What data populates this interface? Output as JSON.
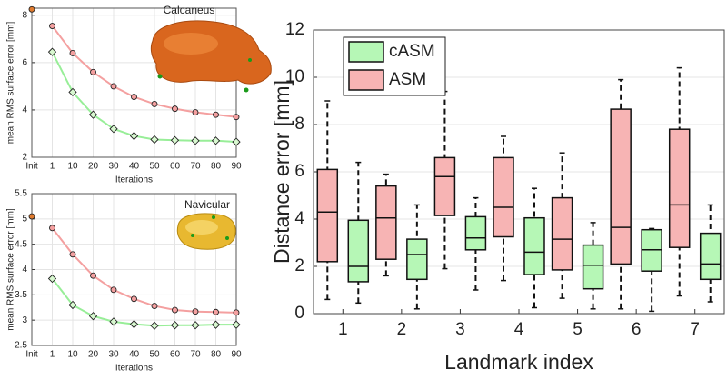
{
  "chart_data": [
    {
      "type": "line",
      "annotation": "Calcaneus",
      "ylabel": "mean RMS surface error [mm]",
      "xlabel": "Iterations",
      "categories": [
        "Init",
        "1",
        "10",
        "20",
        "30",
        "40",
        "50",
        "60",
        "70",
        "80",
        "90"
      ],
      "ylim": [
        2,
        8.3
      ],
      "yticks": [
        2,
        4,
        6,
        8
      ],
      "grid": true,
      "series": [
        {
          "color": "#e07b2e",
          "marker": "circle",
          "values": [
            8.25,
            null,
            null,
            null,
            null,
            null,
            null,
            null,
            null,
            null,
            null
          ]
        },
        {
          "color": "#f4a0a0",
          "marker": "circle",
          "values": [
            null,
            7.55,
            6.4,
            5.6,
            5.0,
            4.55,
            4.25,
            4.05,
            3.9,
            3.8,
            3.7
          ]
        },
        {
          "color": "#98ee98",
          "marker": "diamond",
          "values": [
            null,
            6.45,
            4.75,
            3.8,
            3.2,
            2.9,
            2.75,
            2.72,
            2.7,
            2.7,
            2.65
          ]
        }
      ]
    },
    {
      "type": "line",
      "annotation": "Navicular",
      "ylabel": "mean RMS surface error [mm]",
      "xlabel": "Iterations",
      "categories": [
        "Init",
        "1",
        "10",
        "20",
        "30",
        "40",
        "50",
        "60",
        "70",
        "80",
        "90"
      ],
      "ylim": [
        2.5,
        5.5
      ],
      "yticks": [
        2.5,
        3,
        3.5,
        4,
        4.5,
        5,
        5.5
      ],
      "grid": true,
      "series": [
        {
          "color": "#e07b2e",
          "marker": "circle",
          "values": [
            5.05,
            null,
            null,
            null,
            null,
            null,
            null,
            null,
            null,
            null,
            null
          ]
        },
        {
          "color": "#f4a0a0",
          "marker": "circle",
          "values": [
            null,
            4.82,
            4.3,
            3.88,
            3.6,
            3.42,
            3.28,
            3.2,
            3.17,
            3.16,
            3.15
          ]
        },
        {
          "color": "#98ee98",
          "marker": "diamond",
          "values": [
            null,
            3.82,
            3.3,
            3.08,
            2.97,
            2.92,
            2.89,
            2.9,
            2.9,
            2.91,
            2.91
          ]
        }
      ]
    },
    {
      "type": "box",
      "ylabel": "Distance error [mm]",
      "xlabel": "Landmark index",
      "categories": [
        "1",
        "2",
        "3",
        "4",
        "5",
        "6",
        "7"
      ],
      "ylim": [
        0,
        12
      ],
      "yticks": [
        0,
        2,
        4,
        6,
        8,
        10,
        12
      ],
      "grid": true,
      "legend": "upper left",
      "series": [
        {
          "name": "cASM",
          "color": "#b6f7b6",
          "min": [
            0.45,
            0.2,
            1.0,
            0.25,
            0.2,
            0.1,
            0.5
          ],
          "q1": [
            1.35,
            1.45,
            2.7,
            1.65,
            1.05,
            1.8,
            1.45
          ],
          "median": [
            2.0,
            2.5,
            3.2,
            2.6,
            2.05,
            2.7,
            2.1
          ],
          "q3": [
            3.95,
            3.15,
            4.1,
            4.05,
            2.9,
            3.55,
            3.4
          ],
          "max": [
            6.4,
            4.6,
            4.9,
            5.3,
            3.85,
            3.6,
            4.6
          ]
        },
        {
          "name": "ASM",
          "color": "#f7b4b4",
          "min": [
            0.6,
            1.6,
            1.9,
            1.4,
            0.65,
            0.2,
            0.75
          ],
          "q1": [
            2.2,
            2.3,
            4.15,
            3.25,
            1.85,
            2.1,
            2.8
          ],
          "median": [
            4.3,
            4.05,
            5.8,
            4.5,
            3.15,
            3.65,
            4.6
          ],
          "q3": [
            6.1,
            5.4,
            6.6,
            6.6,
            4.9,
            8.65,
            7.8
          ],
          "max": [
            9.0,
            5.9,
            9.4,
            7.5,
            6.8,
            9.9,
            10.4
          ]
        }
      ]
    }
  ]
}
